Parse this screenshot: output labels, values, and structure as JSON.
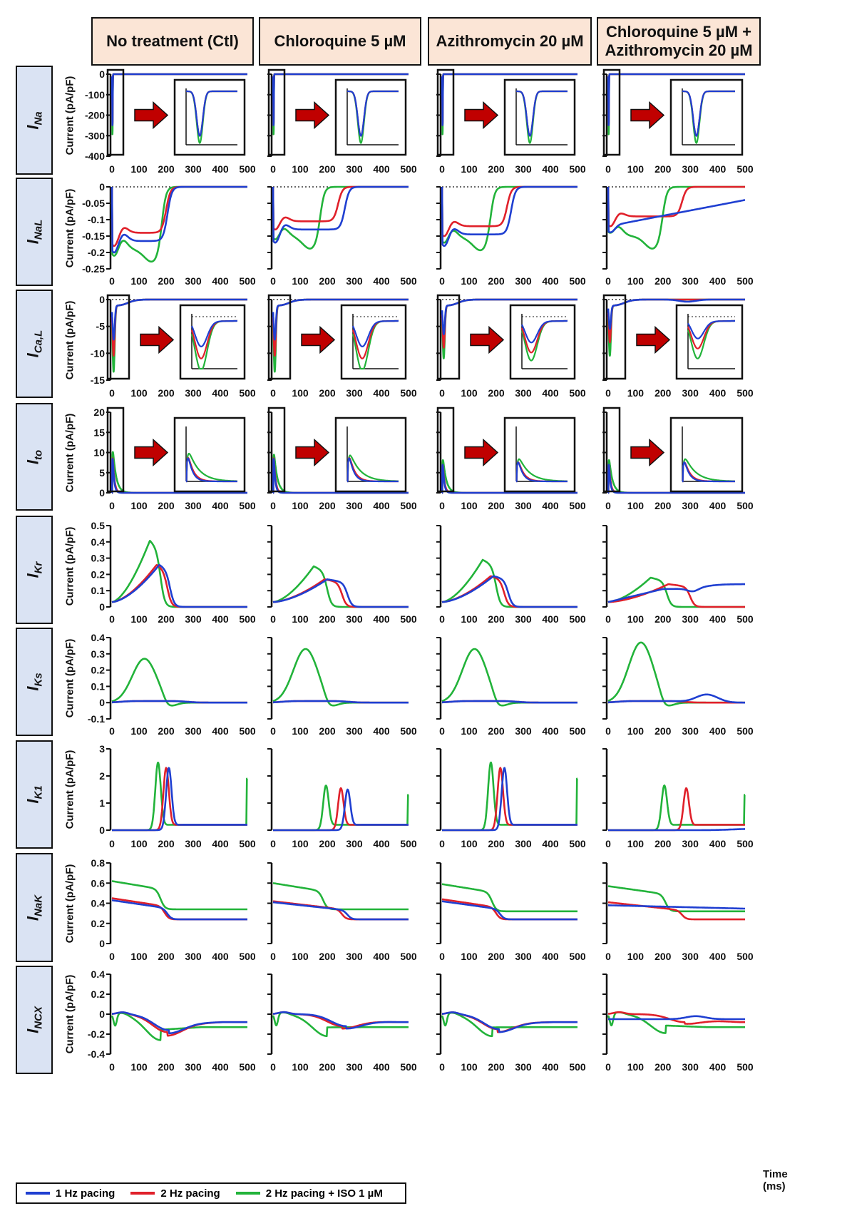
{
  "columns": [
    "No treatment (Ctl)",
    "Chloroquine 5 µM",
    "Azithromycin 20 µM",
    "Chloroquine 5 µM + Azithromycin 20 µM"
  ],
  "ylabel": "Current (pA/pF)",
  "xlabel": "Time (ms)",
  "legend": [
    {
      "label": "1 Hz pacing",
      "color": "#1f3fd1"
    },
    {
      "label": "2 Hz pacing",
      "color": "#e0202a"
    },
    {
      "label": "2 Hz pacing + ISO 1 µM",
      "color": "#22b33a"
    }
  ],
  "chart_data": [
    {
      "type": "line",
      "current": "INa",
      "current_main": "I",
      "current_sub": "Na",
      "xlim": [
        0,
        500
      ],
      "ylim": [
        -400,
        0
      ],
      "yticks": [
        0,
        -100,
        -200,
        -300,
        -400
      ],
      "xticks": [
        0,
        100,
        200,
        300,
        400,
        500
      ],
      "inset": true,
      "series_peak_min": {
        "Ctl": [
          -250,
          -250,
          -290
        ],
        "Chloroquine": [
          -250,
          -250,
          -290
        ],
        "Azithromycin": [
          -250,
          -250,
          -290
        ],
        "Combo": [
          -250,
          -250,
          -290
        ]
      }
    },
    {
      "type": "line",
      "current": "INaL",
      "current_main": "I",
      "current_sub": "NaL",
      "xlim": [
        0,
        500
      ],
      "ylim": [
        -0.25,
        0
      ],
      "yticks": [
        0.0,
        -0.05,
        -0.1,
        -0.15,
        -0.2,
        -0.25
      ],
      "xticks": [
        0,
        100,
        200,
        300,
        400,
        500
      ],
      "inset": false
    },
    {
      "type": "line",
      "current": "ICaL",
      "current_main": "I",
      "current_sub": "Ca,L",
      "xlim": [
        0,
        500
      ],
      "ylim": [
        -15,
        0
      ],
      "yticks": [
        0,
        -5,
        -10,
        -15
      ],
      "xticks": [
        0,
        100,
        200,
        300,
        400,
        500
      ],
      "inset": true
    },
    {
      "type": "line",
      "current": "Ito",
      "current_main": "I",
      "current_sub": "to",
      "xlim": [
        0,
        500
      ],
      "ylim": [
        0,
        20
      ],
      "yticks": [
        20,
        15,
        10,
        5,
        0
      ],
      "xticks": [
        0,
        100,
        200,
        300,
        400,
        500
      ],
      "inset": true
    },
    {
      "type": "line",
      "current": "IKr",
      "current_main": "I",
      "current_sub": "Kr",
      "xlim": [
        0,
        500
      ],
      "ylim": [
        0,
        0.5
      ],
      "yticks": [
        0.5,
        0.4,
        0.3,
        0.2,
        0.1,
        0.0
      ],
      "xticks": [
        0,
        100,
        200,
        300,
        400,
        500
      ],
      "inset": false
    },
    {
      "type": "line",
      "current": "IKs",
      "current_main": "I",
      "current_sub": "Ks",
      "xlim": [
        0,
        500
      ],
      "ylim": [
        -0.1,
        0.4
      ],
      "yticks": [
        0.4,
        0.3,
        0.2,
        0.1,
        0.0,
        -0.1
      ],
      "xticks": [
        0,
        100,
        200,
        300,
        400,
        500
      ],
      "inset": false
    },
    {
      "type": "line",
      "current": "IK1",
      "current_main": "I",
      "current_sub": "K1",
      "xlim": [
        0,
        500
      ],
      "ylim": [
        0,
        3
      ],
      "yticks": [
        3,
        2,
        1,
        0
      ],
      "xticks": [
        0,
        100,
        200,
        300,
        400,
        500
      ],
      "inset": false
    },
    {
      "type": "line",
      "current": "INaK",
      "current_main": "I",
      "current_sub": "NaK",
      "xlim": [
        0,
        500
      ],
      "ylim": [
        0,
        0.8
      ],
      "yticks": [
        0.8,
        0.6,
        0.4,
        0.2,
        0.0
      ],
      "xticks": [
        0,
        100,
        200,
        300,
        400,
        500
      ],
      "inset": false
    },
    {
      "type": "line",
      "current": "INCX",
      "current_main": "I",
      "current_sub": "NCX",
      "xlim": [
        0,
        500
      ],
      "ylim": [
        -0.4,
        0.4
      ],
      "yticks": [
        0.4,
        0.2,
        0.0,
        -0.2,
        -0.4
      ],
      "xticks": [
        0,
        100,
        200,
        300,
        400,
        500
      ],
      "inset": false
    }
  ]
}
